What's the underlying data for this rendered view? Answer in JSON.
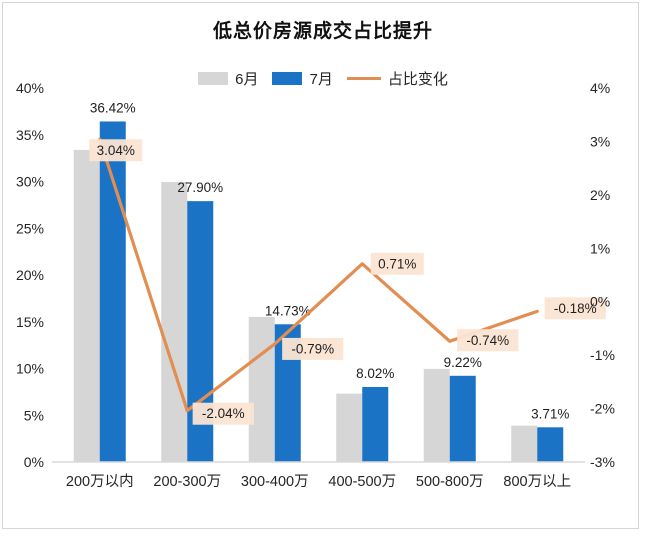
{
  "chart_data": {
    "type": "bar",
    "subtype": "grouped-bars-with-line-overlay",
    "title": "低总价房源成交占比提升",
    "categories": [
      "200万以内",
      "200-300万",
      "300-400万",
      "400-500万",
      "500-800万",
      "800万以上"
    ],
    "series": [
      {
        "name": "6月",
        "type": "bar",
        "axis": "left",
        "color": "#d6d6d6",
        "values": [
          33.38,
          29.94,
          15.52,
          7.31,
          9.96,
          3.89
        ]
      },
      {
        "name": "7月",
        "type": "bar",
        "axis": "left",
        "color": "#1b73c5",
        "values": [
          36.42,
          27.9,
          14.73,
          8.02,
          9.22,
          3.71
        ],
        "labels": [
          "36.42%",
          "27.90%",
          "14.73%",
          "8.02%",
          "9.22%",
          "3.71%"
        ],
        "label_color": "#1f1f1f"
      },
      {
        "name": "占比变化",
        "type": "line",
        "axis": "right",
        "color": "#e28d52",
        "values": [
          3.04,
          -2.04,
          -0.79,
          0.71,
          -0.74,
          -0.18
        ],
        "labels": [
          "3.04%",
          "-2.04%",
          "-0.79%",
          "0.71%",
          "-0.74%",
          "-0.18%"
        ],
        "label_bg": "#fbe5d3",
        "label_color": "#1f1f1f"
      }
    ],
    "left_axis": {
      "min": 0,
      "max": 40,
      "step": 5,
      "ticks": [
        "0%",
        "5%",
        "10%",
        "15%",
        "20%",
        "25%",
        "30%",
        "35%",
        "40%"
      ]
    },
    "right_axis": {
      "min": -3,
      "max": 4,
      "step": 1,
      "ticks": [
        "-3%",
        "-2%",
        "-1%",
        "0%",
        "1%",
        "2%",
        "3%",
        "4%"
      ]
    },
    "grid": false,
    "legend_position": "top",
    "axis_text_color": "#262626",
    "baseline_color": "#d9d9d9"
  }
}
